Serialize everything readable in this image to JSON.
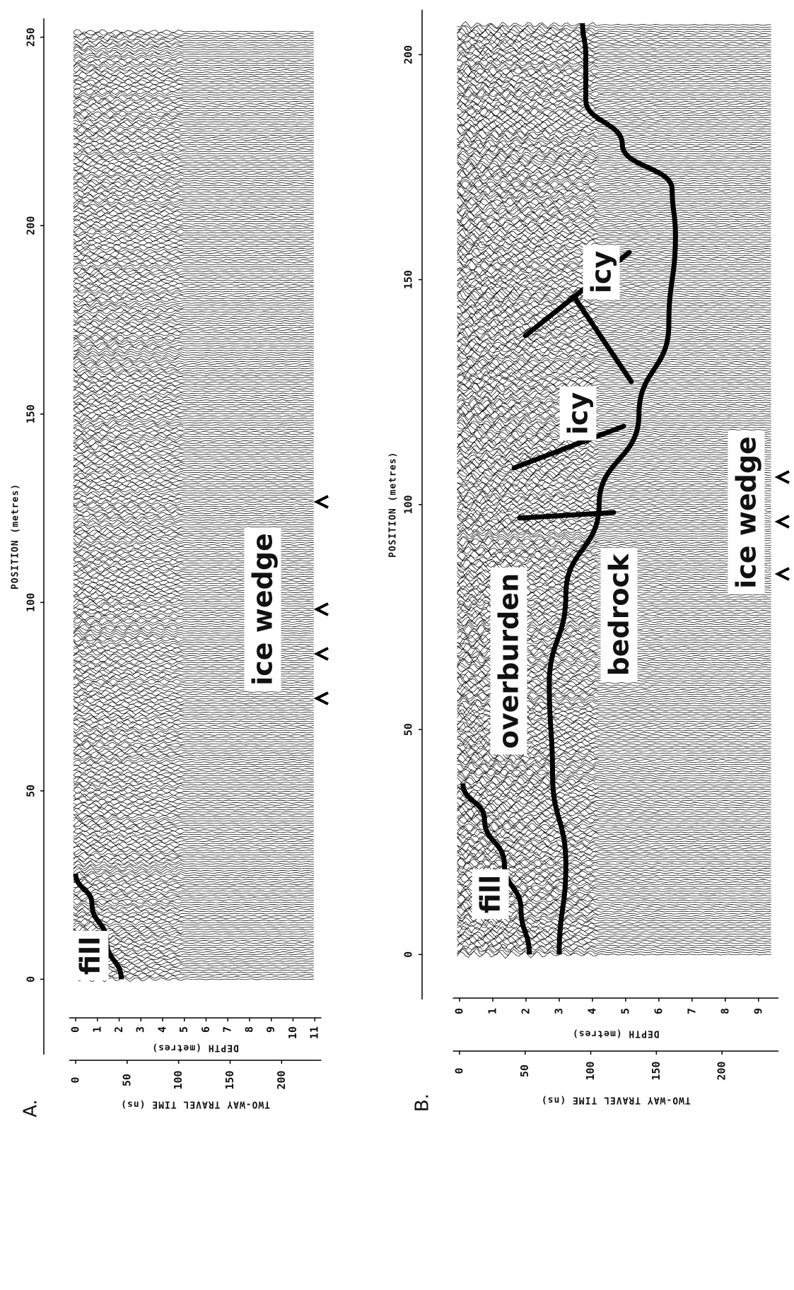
{
  "chart_data": [
    {
      "type": "radargram",
      "panel_label": "A.",
      "xlabel": "POSITION (metres)",
      "ylabel": "DEPTH (metres)",
      "y2label": "TWO-WAY TRAVEL TIME (ns)",
      "xlim": [
        -20,
        255
      ],
      "xticks": [
        0,
        50,
        100,
        150,
        200,
        250
      ],
      "ylim": [
        -0.3,
        11.3
      ],
      "yticks": [
        0,
        1,
        2,
        3,
        4,
        5,
        6,
        7,
        8,
        9,
        10,
        11
      ],
      "y2lim": [
        -6.3,
        238.5
      ],
      "y2ticks": [
        0,
        50,
        100,
        150,
        200
      ],
      "interfaces": [
        {
          "x": [
            0,
            10,
            20,
            28
          ],
          "values": [
            2.1,
            1.43,
            0.75,
            0
          ]
        }
      ],
      "annotations": [
        "fill",
        "ice wedge"
      ]
    },
    {
      "type": "radargram",
      "panel_label": "B.",
      "xlabel": "POSITION (metres)",
      "ylabel": "DEPTH (metres)",
      "y2label": "TWO-WAY TRAVEL TIME (ns)",
      "xlim": [
        -10,
        210
      ],
      "xticks": [
        0,
        50,
        100,
        150,
        200
      ],
      "ylim": [
        -0.2,
        9.6
      ],
      "yticks": [
        0,
        1,
        2,
        3,
        4,
        5,
        6,
        7,
        8,
        9
      ],
      "y2lim": [
        -5,
        243
      ],
      "y2ticks": [
        0,
        50,
        100,
        150,
        200
      ],
      "interfaces": [
        {
          "x": [
            0,
            10,
            20,
            30,
            38
          ],
          "values": [
            2.1,
            1.85,
            1.35,
            0.75,
            0.1
          ]
        },
        {
          "x": [
            0,
            20,
            40,
            60,
            80,
            100,
            120,
            140,
            160,
            170,
            180,
            190,
            200,
            207
          ],
          "values": [
            3.0,
            3.2,
            2.8,
            2.7,
            3.2,
            4.2,
            5.4,
            6.3,
            6.5,
            6.4,
            4.9,
            3.8,
            3.8,
            3.7
          ]
        }
      ],
      "annotations": [
        "fill",
        "overburden",
        "bedrock",
        "icy",
        "icy",
        "ice wedge"
      ]
    }
  ]
}
